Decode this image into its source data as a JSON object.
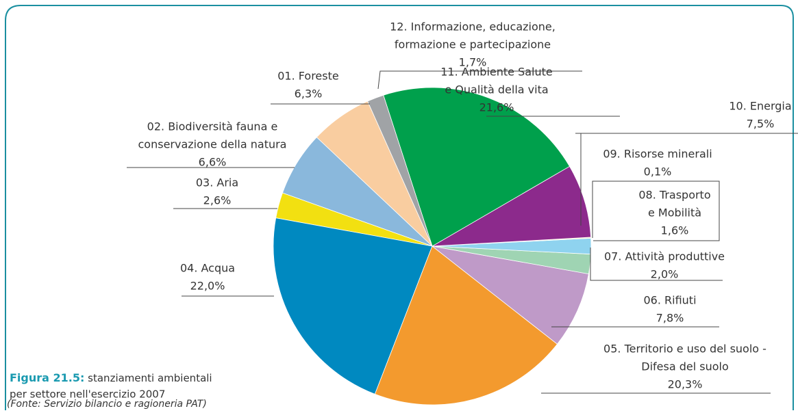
{
  "chart_data": {
    "type": "pie",
    "categories": [
      [
        "01. Foreste"
      ],
      [
        "02. Biodiversità fauna e",
        "conservazione della natura"
      ],
      [
        "03. Aria"
      ],
      [
        "04. Acqua"
      ],
      [
        "05. Territorio e uso del suolo -",
        "Difesa del suolo"
      ],
      [
        "06. Rifiuti"
      ],
      [
        "07. Attività produttive"
      ],
      [
        "08. Trasporto",
        "e Mobilità"
      ],
      [
        "09. Risorse minerali"
      ],
      [
        "10. Energia"
      ],
      [
        "11. Ambiente Salute",
        "e Qualità della vita"
      ],
      [
        "12. Informazione, educazione,",
        "formazione e partecipazione"
      ]
    ],
    "values": [
      6.3,
      6.6,
      2.6,
      22.0,
      20.3,
      7.8,
      2.0,
      1.6,
      0.1,
      7.5,
      21.6,
      1.7
    ],
    "value_labels": [
      "6,3%",
      "6,6%",
      "2,6%",
      "22,0%",
      "20,3%",
      "7,8%",
      "2,0%",
      "1,6%",
      "0,1%",
      "7,5%",
      "21,6%",
      "1,7%"
    ],
    "colors": [
      "#f9cda0",
      "#8ab8dc",
      "#f2e011",
      "#0089c0",
      "#f39a2e",
      "#bf9ac8",
      "#9fd4b3",
      "#8fd3ef",
      "#f7f0b0",
      "#8c2a8c",
      "#00a04c",
      "#a0a3a6"
    ],
    "caption": {
      "label": "Figura 21.5:",
      "text": [
        "stanziamenti ambientali",
        "per settore nell'esercizio 2007"
      ],
      "source": "(Fonte: Servizio bilancio e ragioneria PAT)"
    }
  }
}
